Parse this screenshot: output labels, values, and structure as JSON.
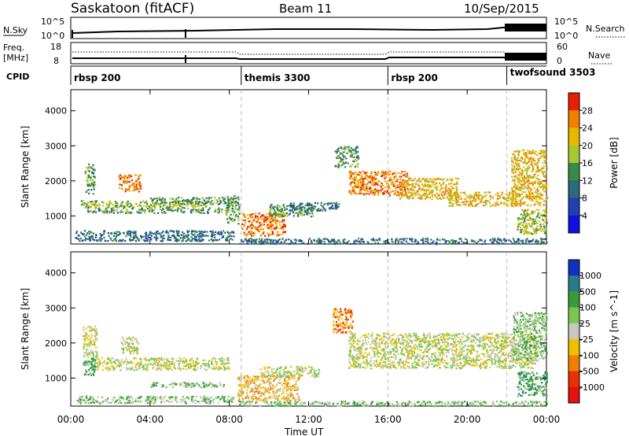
{
  "header": {
    "station": "Saskatoon (fitACF)",
    "beam": "Beam 11",
    "date": "10/Sep/2015"
  },
  "top_strips": {
    "nsky_label": "N.Sky",
    "nsky_ticks": [
      "10^5",
      "10^0"
    ],
    "nsearch_label": "N.Search",
    "freq_label_1": "Freq.",
    "freq_label_2": "[MHz]",
    "freq_ticks": [
      "18",
      "8"
    ],
    "nave_label": "Nave",
    "nave_ticks": [
      "60",
      "0"
    ],
    "cpid_label": "CPID",
    "cpid_segments": [
      {
        "label": "rbsp 200",
        "start_hour": 0
      },
      {
        "label": "themis 3300",
        "start_hour": 8.6
      },
      {
        "label": "rbsp 200",
        "start_hour": 16
      },
      {
        "label": "twofsound 3503",
        "start_hour": 22
      }
    ]
  },
  "chart_data": [
    {
      "type": "heatmap",
      "panel": "power",
      "ylabel": "Slant Range [km]",
      "ylim": [
        200,
        4600
      ],
      "xlim": [
        0,
        24
      ],
      "yticks": [
        "1000",
        "2000",
        "3000",
        "4000"
      ],
      "colorbar": {
        "label": "Power [dB]",
        "ticks": [
          "4",
          "8",
          "12",
          "16",
          "20",
          "24",
          "28"
        ],
        "colors": [
          "#1010e0",
          "#2040b0",
          "#2a6a7a",
          "#3a8a4a",
          "#a8c830",
          "#e8b800",
          "#f08000",
          "#e82000"
        ]
      },
      "regions": [
        {
          "t0": 0.7,
          "t1": 1.2,
          "r0": 1650,
          "r1": 2500,
          "level": 3
        },
        {
          "t0": 2.4,
          "t1": 3.5,
          "r0": 1700,
          "r1": 2200,
          "level": 6
        },
        {
          "t0": 0.5,
          "t1": 6.8,
          "r0": 1250,
          "r1": 1450,
          "level": 4
        },
        {
          "t0": 0.8,
          "t1": 7.8,
          "r0": 1100,
          "r1": 1250,
          "level": 3
        },
        {
          "t0": 4.0,
          "t1": 8.2,
          "r0": 1350,
          "r1": 1550,
          "level": 3
        },
        {
          "t0": 0.2,
          "t1": 8.2,
          "r0": 300,
          "r1": 600,
          "level": 2
        },
        {
          "t0": 7.8,
          "t1": 8.5,
          "r0": 800,
          "r1": 1600,
          "level": 3
        },
        {
          "t0": 8.6,
          "t1": 10.8,
          "r0": 450,
          "r1": 1100,
          "level": 6
        },
        {
          "t0": 10.0,
          "t1": 12.2,
          "r0": 1000,
          "r1": 1350,
          "level": 3
        },
        {
          "t0": 11.0,
          "t1": 13.5,
          "r0": 1150,
          "r1": 1400,
          "level": 2
        },
        {
          "t0": 8.5,
          "t1": 24,
          "r0": 220,
          "r1": 380,
          "level": 2
        },
        {
          "t0": 13.3,
          "t1": 14.5,
          "r0": 2400,
          "r1": 3000,
          "level": 3
        },
        {
          "t0": 14.0,
          "t1": 17.0,
          "r0": 1600,
          "r1": 2300,
          "level": 6
        },
        {
          "t0": 16.5,
          "t1": 19.5,
          "r0": 1500,
          "r1": 2100,
          "level": 5
        },
        {
          "t0": 19.0,
          "t1": 22.5,
          "r0": 1300,
          "r1": 1700,
          "level": 5
        },
        {
          "t0": 22.2,
          "t1": 24,
          "r0": 1300,
          "r1": 2900,
          "level": 5
        },
        {
          "t0": 22.5,
          "t1": 24,
          "r0": 500,
          "r1": 1200,
          "level": 4
        }
      ]
    },
    {
      "type": "heatmap",
      "panel": "velocity",
      "ylabel": "Slant Range [km]",
      "ylim": [
        200,
        4600
      ],
      "xlim": [
        0,
        24
      ],
      "xlabel": "Time UT",
      "yticks": [
        "1000",
        "2000",
        "3000",
        "4000"
      ],
      "xticks": [
        "00:00",
        "04:00",
        "08:00",
        "12:00",
        "16:00",
        "20:00",
        "00:00"
      ],
      "colorbar": {
        "label": "Velocity [m s^-1]",
        "ticks": [
          "1000",
          "500",
          "100",
          "25",
          "-25",
          "-100",
          "-500",
          "-1000"
        ],
        "colors": [
          "#1030c0",
          "#2a7a8a",
          "#3a9a3a",
          "#78c850",
          "#c8c8c0",
          "#f0c000",
          "#f08000",
          "#e83000",
          "#e81010"
        ]
      },
      "regions": [
        {
          "t0": 0.6,
          "t1": 1.3,
          "r0": 1600,
          "r1": 2500,
          "level": 4
        },
        {
          "t0": 2.5,
          "t1": 3.4,
          "r0": 1700,
          "r1": 2200,
          "level": 4
        },
        {
          "t0": 1.0,
          "t1": 8.0,
          "r0": 1250,
          "r1": 1600,
          "level": 4
        },
        {
          "t0": 0.6,
          "t1": 1.2,
          "r0": 1100,
          "r1": 1600,
          "level": 2
        },
        {
          "t0": 4.0,
          "t1": 7.8,
          "r0": 750,
          "r1": 900,
          "level": 3
        },
        {
          "t0": 0.3,
          "t1": 8.2,
          "r0": 300,
          "r1": 500,
          "level": 3
        },
        {
          "t0": 8.4,
          "t1": 11.5,
          "r0": 350,
          "r1": 1100,
          "level": 5
        },
        {
          "t0": 9.5,
          "t1": 12.5,
          "r0": 1050,
          "r1": 1350,
          "level": 4
        },
        {
          "t0": 8.3,
          "t1": 24,
          "r0": 220,
          "r1": 360,
          "level": 3
        },
        {
          "t0": 13.2,
          "t1": 14.2,
          "r0": 2300,
          "r1": 3000,
          "level": 6
        },
        {
          "t0": 14.0,
          "t1": 23.5,
          "r0": 1300,
          "r1": 2300,
          "level": 4
        },
        {
          "t0": 22.3,
          "t1": 24,
          "r0": 1500,
          "r1": 2900,
          "level": 3
        },
        {
          "t0": 22.5,
          "t1": 24,
          "r0": 500,
          "r1": 1200,
          "level": 2
        }
      ]
    }
  ]
}
